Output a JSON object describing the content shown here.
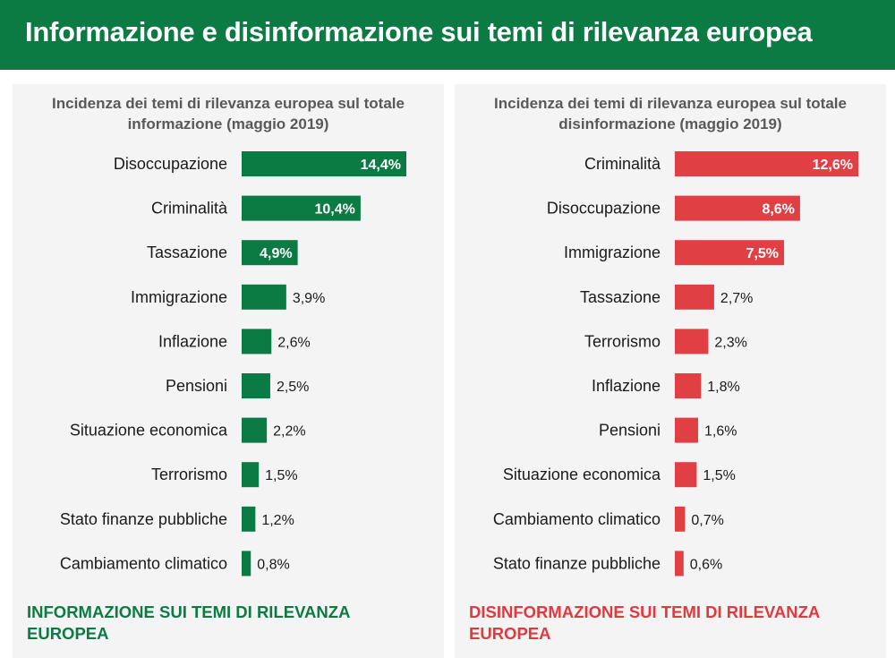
{
  "header": {
    "title": "Informazione e disinformazione sui temi di rilevanza europea"
  },
  "colors": {
    "green": "#0b7a43",
    "red": "#e04044",
    "panel_bg": "#f4f4f4"
  },
  "left_panel": {
    "title": "Incidenza dei temi di rilevanza europea sul totale informazione (maggio 2019)",
    "footer": "INFORMAZIONE SUI TEMI DI RILEVANZA EUROPEA"
  },
  "right_panel": {
    "title": "Incidenza dei temi di rilevanza europea sul totale disinformazione (maggio 2019)",
    "footer": "DISINFORMAZIONE SUI TEMI DI RILEVANZA EUROPEA"
  },
  "chart_data": [
    {
      "type": "bar",
      "orientation": "horizontal",
      "title": "Incidenza dei temi di rilevanza europea sul totale informazione (maggio 2019)",
      "color": "#0b7a43",
      "categories": [
        "Disoccupazione",
        "Criminalità",
        "Tassazione",
        "Immigrazione",
        "Inflazione",
        "Pensioni",
        "Situazione economica",
        "Terrorismo",
        "Stato finanze pubbliche",
        "Cambiamento climatico"
      ],
      "values": [
        14.4,
        10.4,
        4.9,
        3.9,
        2.6,
        2.5,
        2.2,
        1.5,
        1.2,
        0.8
      ],
      "labels": [
        "14,4%",
        "10,4%",
        "4,9%",
        "3,9%",
        "2,6%",
        "2,5%",
        "2,2%",
        "1,5%",
        "1,2%",
        "0,8%"
      ],
      "labels_inside": [
        true,
        true,
        true,
        false,
        false,
        false,
        false,
        false,
        false,
        false
      ]
    },
    {
      "type": "bar",
      "orientation": "horizontal",
      "title": "Incidenza dei temi di rilevanza europea sul totale disinformazione (maggio 2019)",
      "color": "#e04044",
      "categories": [
        "Criminalità",
        "Disoccupazione",
        "Immigrazione",
        "Tassazione",
        "Terrorismo",
        "Inflazione",
        "Pensioni",
        "Situazione economica",
        "Cambiamento climatico",
        "Stato finanze pubbliche"
      ],
      "values": [
        12.6,
        8.6,
        7.5,
        2.7,
        2.3,
        1.8,
        1.6,
        1.5,
        0.7,
        0.6
      ],
      "labels": [
        "12,6%",
        "8,6%",
        "7,5%",
        "2,7%",
        "2,3%",
        "1,8%",
        "1,6%",
        "1,5%",
        "0,7%",
        "0,6%"
      ],
      "labels_inside": [
        true,
        true,
        true,
        false,
        false,
        false,
        false,
        false,
        false,
        false
      ]
    }
  ]
}
